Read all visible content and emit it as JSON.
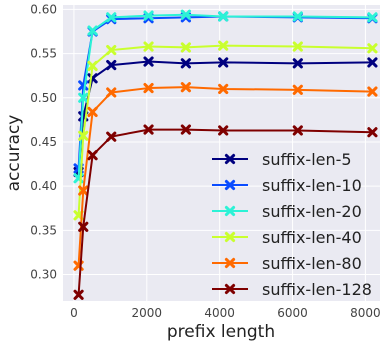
{
  "chart_data": {
    "type": "line",
    "title": "",
    "xlabel": "prefix length",
    "ylabel": "accuracy",
    "xlim": [
      -300,
      8400
    ],
    "ylim": [
      0.27,
      0.605
    ],
    "xticks": [
      0,
      2000,
      4000,
      6000,
      8000
    ],
    "xtick_labels": [
      "0",
      "2000",
      "4000",
      "6000",
      "8000"
    ],
    "yticks": [
      0.3,
      0.35,
      0.4,
      0.45,
      0.5,
      0.55,
      0.6
    ],
    "ytick_labels": [
      "0.30",
      "0.35",
      "0.40",
      "0.45",
      "0.50",
      "0.55",
      "0.60"
    ],
    "grid": true,
    "legend_position": "bottom-right",
    "x": [
      128,
      256,
      512,
      1024,
      2048,
      3072,
      4096,
      6144,
      8192
    ],
    "series": [
      {
        "name": "suffix-len-5",
        "color": "#00007f",
        "values": [
          0.416,
          0.479,
          0.522,
          0.537,
          0.541,
          0.539,
          0.54,
          0.539,
          0.54
        ]
      },
      {
        "name": "suffix-len-10",
        "color": "#0a4cff",
        "values": [
          0.42,
          0.514,
          0.575,
          0.589,
          0.59,
          0.591,
          0.592,
          0.591,
          0.59
        ]
      },
      {
        "name": "suffix-len-20",
        "color": "#2cf2d6",
        "values": [
          0.409,
          0.5,
          0.576,
          0.591,
          0.593,
          0.594,
          0.592,
          0.592,
          0.591
        ]
      },
      {
        "name": "suffix-len-40",
        "color": "#c9ff2e",
        "values": [
          0.367,
          0.457,
          0.536,
          0.554,
          0.558,
          0.557,
          0.559,
          0.558,
          0.556
        ]
      },
      {
        "name": "suffix-len-80",
        "color": "#ff6a00",
        "values": [
          0.31,
          0.395,
          0.484,
          0.506,
          0.511,
          0.512,
          0.51,
          0.509,
          0.507
        ]
      },
      {
        "name": "suffix-len-128",
        "color": "#7f0000",
        "values": [
          0.277,
          0.354,
          0.435,
          0.456,
          0.464,
          0.464,
          0.463,
          0.463,
          0.461
        ]
      }
    ]
  }
}
